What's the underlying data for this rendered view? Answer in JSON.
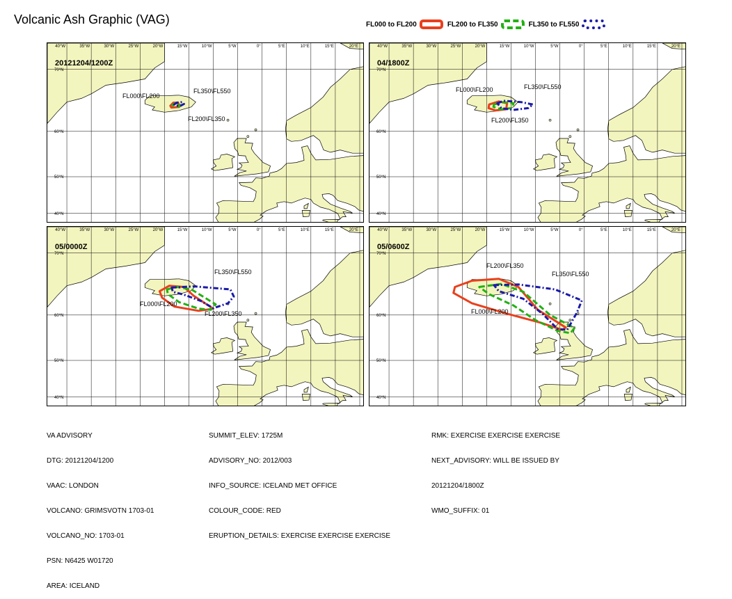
{
  "title": "Volcanic Ash Graphic (VAG)",
  "legend": [
    {
      "label": "FL000 to FL200",
      "color": "#e8401c",
      "style": "solid"
    },
    {
      "label": "FL200 to FL350",
      "color": "#22b014",
      "style": "dashed"
    },
    {
      "label": "FL350 to FL550",
      "color": "#1a1aa8",
      "style": "dashdot"
    }
  ],
  "axes": {
    "lon_labels": [
      "40°W",
      "35°W",
      "30°W",
      "25°W",
      "20°W",
      "15°W",
      "10°W",
      "5°W",
      "0°",
      "5°E",
      "10°E",
      "15°E",
      "20°E"
    ],
    "lat_labels": [
      "70°N",
      "60°N",
      "50°N",
      "40°N"
    ]
  },
  "panels": [
    {
      "time": "20121204/1200Z",
      "labels": [
        {
          "text": "FL350\\FL550"
        },
        {
          "text": "FL000\\FL200"
        },
        {
          "text": "FL200\\FL350"
        }
      ],
      "areas": [
        {
          "level": "FL000 to FL200",
          "color": "#e8401c",
          "points": [
            [
              -18.8,
              64.6
            ],
            [
              -18.2,
              65.1
            ],
            [
              -17.2,
              65.1
            ],
            [
              -17.0,
              64.4
            ],
            [
              -18.6,
              64.3
            ]
          ]
        },
        {
          "level": "FL200 to FL350",
          "color": "#22b014",
          "points": [
            [
              -18.4,
              64.7
            ],
            [
              -17.8,
              65.0
            ],
            [
              -16.9,
              65.0
            ],
            [
              -16.9,
              64.5
            ],
            [
              -18.1,
              64.5
            ]
          ]
        },
        {
          "level": "FL350 to FL550",
          "color": "#1a1aa8",
          "points": [
            [
              -18.0,
              64.8
            ],
            [
              -17.5,
              65.1
            ],
            [
              -16.4,
              65.2
            ],
            [
              -16.0,
              64.9
            ],
            [
              -16.7,
              64.6
            ],
            [
              -17.6,
              64.6
            ]
          ]
        }
      ]
    },
    {
      "time": "04/1800Z",
      "labels": [
        {
          "text": "FL350\\FL550"
        },
        {
          "text": "FL000\\FL200"
        },
        {
          "text": "FL200\\FL350"
        }
      ],
      "areas": [
        {
          "level": "FL000 to FL200",
          "color": "#e8401c",
          "points": [
            [
              -19.5,
              64.8
            ],
            [
              -17.5,
              65.3
            ],
            [
              -15.8,
              65.0
            ],
            [
              -16.0,
              64.0
            ],
            [
              -18.2,
              63.8
            ],
            [
              -19.6,
              64.2
            ]
          ]
        },
        {
          "level": "FL200 to FL350",
          "color": "#22b014",
          "points": [
            [
              -18.5,
              64.8
            ],
            [
              -16.5,
              65.2
            ],
            [
              -14.5,
              65.0
            ],
            [
              -14.8,
              64.2
            ],
            [
              -17.0,
              64.0
            ],
            [
              -18.6,
              64.4
            ]
          ]
        },
        {
          "level": "FL350 to FL550",
          "color": "#1a1aa8",
          "points": [
            [
              -17.8,
              65.0
            ],
            [
              -16.5,
              65.4
            ],
            [
              -13.0,
              65.2
            ],
            [
              -10.5,
              64.8
            ],
            [
              -11.5,
              64.2
            ],
            [
              -14.5,
              63.9
            ],
            [
              -17.0,
              64.2
            ]
          ]
        }
      ]
    },
    {
      "time": "05/0000Z",
      "labels": [
        {
          "text": "FL350\\FL550"
        },
        {
          "text": "FL000\\FL200"
        },
        {
          "text": "FL200\\FL350"
        }
      ],
      "areas": [
        {
          "level": "FL000 to FL200",
          "color": "#e8401c",
          "points": [
            [
              -21.0,
              64.3
            ],
            [
              -19.0,
              65.2
            ],
            [
              -16.0,
              65.0
            ],
            [
              -14.0,
              63.5
            ],
            [
              -10.0,
              61.2
            ],
            [
              -13.0,
              60.8
            ],
            [
              -18.0,
              61.6
            ],
            [
              -20.5,
              63.2
            ]
          ]
        },
        {
          "level": "FL200 to FL350",
          "color": "#22b014",
          "points": [
            [
              -19.5,
              64.6
            ],
            [
              -17.5,
              65.0
            ],
            [
              -14.5,
              64.6
            ],
            [
              -9.5,
              62.0
            ],
            [
              -10.5,
              61.0
            ],
            [
              -13.0,
              61.2
            ],
            [
              -17.0,
              62.4
            ],
            [
              -19.3,
              63.8
            ]
          ]
        },
        {
          "level": "FL350 to FL550",
          "color": "#1a1aa8",
          "points": [
            [
              -18.5,
              64.9
            ],
            [
              -14.0,
              65.1
            ],
            [
              -6.5,
              64.6
            ],
            [
              -5.8,
              63.4
            ],
            [
              -7.0,
              62.2
            ],
            [
              -10.0,
              61.3
            ],
            [
              -12.5,
              62.6
            ],
            [
              -16.0,
              63.7
            ],
            [
              -18.3,
              64.2
            ]
          ]
        }
      ]
    },
    {
      "time": "05/0600Z",
      "labels": [
        {
          "text": "FL200\\FL350"
        },
        {
          "text": "FL350\\FL550"
        },
        {
          "text": "FL000\\FL200"
        }
      ],
      "areas": [
        {
          "level": "FL000 to FL200",
          "color": "#e8401c",
          "points": [
            [
              -26.5,
              65.0
            ],
            [
              -23.0,
              66.0
            ],
            [
              -17.5,
              66.3
            ],
            [
              -13.5,
              65.0
            ],
            [
              -9.5,
              61.0
            ],
            [
              -3.8,
              57.5
            ],
            [
              -4.5,
              57.0
            ],
            [
              -9.0,
              58.5
            ],
            [
              -16.0,
              60.3
            ],
            [
              -23.0,
              62.2
            ],
            [
              -26.8,
              64.0
            ]
          ]
        },
        {
          "level": "FL200 to FL350",
          "color": "#22b014",
          "points": [
            [
              -21.5,
              65.0
            ],
            [
              -17.0,
              65.5
            ],
            [
              -12.5,
              64.2
            ],
            [
              -7.0,
              60.0
            ],
            [
              -2.0,
              57.4
            ],
            [
              -2.8,
              56.3
            ],
            [
              -5.5,
              56.8
            ],
            [
              -10.0,
              59.0
            ],
            [
              -14.5,
              61.8
            ],
            [
              -19.5,
              63.8
            ]
          ]
        },
        {
          "level": "FL350 to FL550",
          "color": "#1a1aa8",
          "points": [
            [
              -18.5,
              65.3
            ],
            [
              -13.5,
              65.4
            ],
            [
              -6.0,
              64.6
            ],
            [
              -0.5,
              62.7
            ],
            [
              -1.5,
              60.5
            ],
            [
              -3.5,
              57.0
            ],
            [
              -5.5,
              57.2
            ],
            [
              -8.5,
              60.2
            ],
            [
              -12.5,
              63.0
            ],
            [
              -17.5,
              64.3
            ]
          ]
        }
      ]
    }
  ],
  "info": {
    "col1": [
      "VA ADVISORY",
      "DTG: 20121204/1200",
      "VAAC: LONDON",
      "VOLCANO: GRIMSVOTN 1703-01",
      "VOLCANO_NO: 1703-01",
      "PSN: N6425 W01720",
      "AREA: ICELAND"
    ],
    "col2": [
      "SUMMIT_ELEV: 1725M",
      "ADVISORY_NO: 2012/003",
      "INFO_SOURCE: ICELAND MET OFFICE",
      "COLOUR_CODE: RED",
      "ERUPTION_DETAILS: EXERCISE EXERCISE EXERCISE"
    ],
    "col3": [
      "RMK: EXERCISE EXERCISE EXERCISE",
      "NEXT_ADVISORY: WILL BE ISSUED BY",
      "20121204/1800Z",
      "WMO_SUFFIX: 01"
    ]
  },
  "colors": {
    "land": "#f3f5be",
    "sea": "#ffffff",
    "grid": "#000000"
  }
}
